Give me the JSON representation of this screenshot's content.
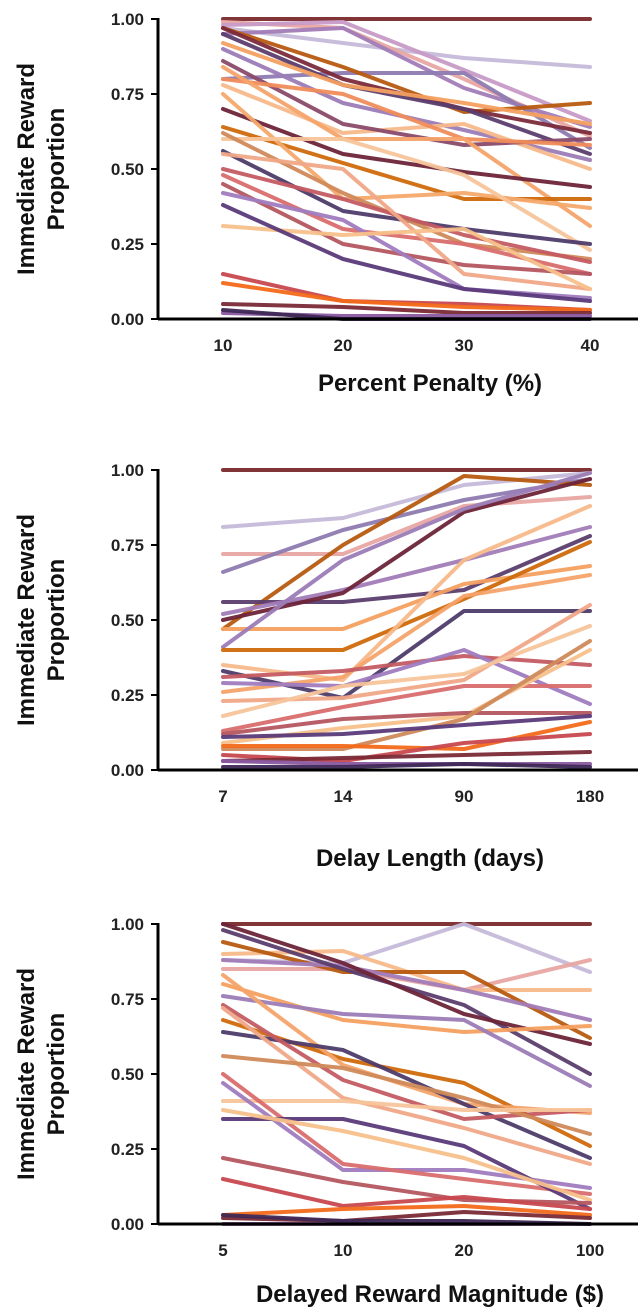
{
  "chart_data": [
    {
      "type": "line",
      "xlabel": "Percent Penalty (%)",
      "ylabel": [
        "Immediate Reward",
        "Proportion"
      ],
      "categories": [
        "10",
        "20",
        "30",
        "40"
      ],
      "ylim": [
        0,
        1
      ],
      "yticks": [
        "0.00",
        "0.25",
        "0.50",
        "0.75",
        "1.00"
      ],
      "series": [
        {
          "color": "#7b2a2c",
          "values": [
            1.0,
            1.0,
            1.0,
            1.0
          ]
        },
        {
          "color": "#c5bbd9",
          "values": [
            0.97,
            0.92,
            0.87,
            0.84
          ]
        },
        {
          "color": "#e8a7a2",
          "values": [
            0.99,
            0.97,
            0.8,
            0.61
          ]
        },
        {
          "color": "#c79ac6",
          "values": [
            0.98,
            0.99,
            0.83,
            0.66
          ]
        },
        {
          "color": "#a27cb8",
          "values": [
            0.95,
            0.97,
            0.77,
            0.64
          ]
        },
        {
          "color": "#8e7bb1",
          "values": [
            0.8,
            0.82,
            0.82,
            0.57
          ]
        },
        {
          "color": "#b75a10",
          "values": [
            0.97,
            0.84,
            0.69,
            0.72
          ]
        },
        {
          "color": "#7b2a3a",
          "values": [
            0.97,
            0.8,
            0.7,
            0.62
          ]
        },
        {
          "color": "#5b3d6d",
          "values": [
            0.95,
            0.78,
            0.7,
            0.55
          ]
        },
        {
          "color": "#f4a060",
          "values": [
            0.92,
            0.78,
            0.72,
            0.65
          ]
        },
        {
          "color": "#9c7cb7",
          "values": [
            0.9,
            0.72,
            0.63,
            0.53
          ]
        },
        {
          "color": "#f7b98a",
          "values": [
            0.78,
            0.62,
            0.65,
            0.5
          ]
        },
        {
          "color": "#8a4a6a",
          "values": [
            0.86,
            0.65,
            0.58,
            0.6
          ]
        },
        {
          "color": "#f08c5a",
          "values": [
            0.8,
            0.75,
            0.6,
            0.58
          ]
        },
        {
          "color": "#f5a36a",
          "values": [
            0.84,
            0.6,
            0.6,
            0.31
          ]
        },
        {
          "color": "#6d2438",
          "values": [
            0.7,
            0.55,
            0.49,
            0.44
          ]
        },
        {
          "color": "#cf6a0c",
          "values": [
            0.64,
            0.52,
            0.4,
            0.4
          ]
        },
        {
          "color": "#f4a96c",
          "values": [
            0.75,
            0.4,
            0.42,
            0.37
          ]
        },
        {
          "color": "#f7c49a",
          "values": [
            0.6,
            0.6,
            0.48,
            0.23
          ]
        },
        {
          "color": "#4e3b6a",
          "values": [
            0.56,
            0.36,
            0.3,
            0.25
          ]
        },
        {
          "color": "#d08a5a",
          "values": [
            0.62,
            0.42,
            0.25,
            0.2
          ]
        },
        {
          "color": "#c45b62",
          "values": [
            0.5,
            0.4,
            0.28,
            0.19
          ]
        },
        {
          "color": "#d96d6d",
          "values": [
            0.48,
            0.3,
            0.25,
            0.15
          ]
        },
        {
          "color": "#b45660",
          "values": [
            0.45,
            0.25,
            0.18,
            0.15
          ]
        },
        {
          "color": "#f0a888",
          "values": [
            0.55,
            0.5,
            0.15,
            0.1
          ]
        },
        {
          "color": "#a07cc0",
          "values": [
            0.42,
            0.33,
            0.1,
            0.07
          ]
        },
        {
          "color": "#f7c08a",
          "values": [
            0.31,
            0.28,
            0.3,
            0.1
          ]
        },
        {
          "color": "#5a3a7a",
          "values": [
            0.38,
            0.2,
            0.1,
            0.06
          ]
        },
        {
          "color": "#c8484f",
          "values": [
            0.15,
            0.06,
            0.05,
            0.03
          ]
        },
        {
          "color": "#f26a1a",
          "values": [
            0.12,
            0.06,
            0.04,
            0.03
          ]
        },
        {
          "color": "#7a2a36",
          "values": [
            0.05,
            0.04,
            0.02,
            0.02
          ]
        },
        {
          "color": "#8a5aa0",
          "values": [
            0.02,
            0.01,
            0.01,
            0.01
          ]
        },
        {
          "color": "#3e2855",
          "values": [
            0.03,
            0.0,
            0.0,
            0.0
          ]
        }
      ]
    },
    {
      "type": "line",
      "xlabel": "Delay Length (days)",
      "ylabel": [
        "Immediate Reward",
        "Proportion"
      ],
      "categories": [
        "7",
        "14",
        "90",
        "180"
      ],
      "ylim": [
        0,
        1
      ],
      "yticks": [
        "0.00",
        "0.25",
        "0.50",
        "0.75",
        "1.00"
      ],
      "series": [
        {
          "color": "#7b2a2c",
          "values": [
            1.0,
            1.0,
            1.0,
            1.0
          ]
        },
        {
          "color": "#c5bbd9",
          "values": [
            0.81,
            0.84,
            0.95,
            0.99
          ]
        },
        {
          "color": "#e8a7a2",
          "values": [
            0.72,
            0.72,
            0.88,
            0.91
          ]
        },
        {
          "color": "#8e7bb1",
          "values": [
            0.66,
            0.8,
            0.9,
            0.97
          ]
        },
        {
          "color": "#b75a10",
          "values": [
            0.47,
            0.75,
            0.98,
            0.95
          ]
        },
        {
          "color": "#5b3d6d",
          "values": [
            0.56,
            0.56,
            0.6,
            0.78
          ]
        },
        {
          "color": "#f4a060",
          "values": [
            0.47,
            0.47,
            0.62,
            0.68
          ]
        },
        {
          "color": "#a27cb8",
          "values": [
            0.52,
            0.6,
            0.7,
            0.81
          ]
        },
        {
          "color": "#6d2438",
          "values": [
            0.5,
            0.59,
            0.86,
            0.97
          ]
        },
        {
          "color": "#9c7cb7",
          "values": [
            0.41,
            0.7,
            0.87,
            0.99
          ]
        },
        {
          "color": "#cf6a0c",
          "values": [
            0.4,
            0.4,
            0.57,
            0.76
          ]
        },
        {
          "color": "#f7b98a",
          "values": [
            0.35,
            0.3,
            0.7,
            0.88
          ]
        },
        {
          "color": "#4e3b6a",
          "values": [
            0.33,
            0.24,
            0.53,
            0.53
          ]
        },
        {
          "color": "#f5a36a",
          "values": [
            0.26,
            0.31,
            0.58,
            0.65
          ]
        },
        {
          "color": "#c45b62",
          "values": [
            0.31,
            0.33,
            0.38,
            0.35
          ]
        },
        {
          "color": "#f0a888",
          "values": [
            0.23,
            0.24,
            0.3,
            0.55
          ]
        },
        {
          "color": "#a07cc0",
          "values": [
            0.29,
            0.28,
            0.4,
            0.22
          ]
        },
        {
          "color": "#f7c49a",
          "values": [
            0.18,
            0.28,
            0.32,
            0.48
          ]
        },
        {
          "color": "#d96d6d",
          "values": [
            0.13,
            0.21,
            0.28,
            0.28
          ]
        },
        {
          "color": "#f7c08a",
          "values": [
            0.09,
            0.14,
            0.18,
            0.4
          ]
        },
        {
          "color": "#b45660",
          "values": [
            0.12,
            0.17,
            0.19,
            0.19
          ]
        },
        {
          "color": "#d08a5a",
          "values": [
            0.07,
            0.07,
            0.17,
            0.43
          ]
        },
        {
          "color": "#5a3a7a",
          "values": [
            0.11,
            0.12,
            0.15,
            0.18
          ]
        },
        {
          "color": "#f26a1a",
          "values": [
            0.08,
            0.08,
            0.07,
            0.16
          ]
        },
        {
          "color": "#c8484f",
          "values": [
            0.05,
            0.03,
            0.09,
            0.12
          ]
        },
        {
          "color": "#7a2a36",
          "values": [
            0.03,
            0.04,
            0.05,
            0.06
          ]
        },
        {
          "color": "#8a5aa0",
          "values": [
            0.03,
            0.02,
            0.02,
            0.02
          ]
        },
        {
          "color": "#3e2855",
          "values": [
            0.01,
            0.01,
            0.02,
            0.01
          ]
        }
      ]
    },
    {
      "type": "line",
      "xlabel": "Delayed Reward Magnitude ($)",
      "ylabel": [
        "Immediate Reward",
        "Proportion"
      ],
      "categories": [
        "5",
        "10",
        "20",
        "100"
      ],
      "ylim": [
        0,
        1
      ],
      "yticks": [
        "0.00",
        "0.25",
        "0.50",
        "0.75",
        "1.00"
      ],
      "series": [
        {
          "color": "#7b2a2c",
          "values": [
            1.0,
            1.0,
            1.0,
            1.0
          ]
        },
        {
          "color": "#c5bbd9",
          "values": [
            0.88,
            0.87,
            1.0,
            0.84
          ]
        },
        {
          "color": "#e8a7a2",
          "values": [
            0.85,
            0.85,
            0.78,
            0.88
          ]
        },
        {
          "color": "#f7b98a",
          "values": [
            0.9,
            0.91,
            0.78,
            0.78
          ]
        },
        {
          "color": "#b75a10",
          "values": [
            0.94,
            0.84,
            0.84,
            0.62
          ]
        },
        {
          "color": "#a27cb8",
          "values": [
            0.88,
            0.86,
            0.78,
            0.68
          ]
        },
        {
          "color": "#5b3d6d",
          "values": [
            0.98,
            0.85,
            0.73,
            0.5
          ]
        },
        {
          "color": "#6d2438",
          "values": [
            1.0,
            0.87,
            0.7,
            0.6
          ]
        },
        {
          "color": "#f4a060",
          "values": [
            0.8,
            0.68,
            0.64,
            0.66
          ]
        },
        {
          "color": "#9c7cb7",
          "values": [
            0.76,
            0.7,
            0.68,
            0.46
          ]
        },
        {
          "color": "#cf6a0c",
          "values": [
            0.68,
            0.55,
            0.47,
            0.26
          ]
        },
        {
          "color": "#f5a36a",
          "values": [
            0.83,
            0.53,
            0.4,
            0.37
          ]
        },
        {
          "color": "#4e3b6a",
          "values": [
            0.64,
            0.58,
            0.4,
            0.22
          ]
        },
        {
          "color": "#c45b62",
          "values": [
            0.73,
            0.48,
            0.35,
            0.38
          ]
        },
        {
          "color": "#f0a888",
          "values": [
            0.72,
            0.42,
            0.32,
            0.2
          ]
        },
        {
          "color": "#d08a5a",
          "values": [
            0.56,
            0.52,
            0.42,
            0.3
          ]
        },
        {
          "color": "#f7c49a",
          "values": [
            0.41,
            0.41,
            0.38,
            0.38
          ]
        },
        {
          "color": "#a07cc0",
          "values": [
            0.47,
            0.18,
            0.18,
            0.12
          ]
        },
        {
          "color": "#d96d6d",
          "values": [
            0.5,
            0.2,
            0.15,
            0.1
          ]
        },
        {
          "color": "#5a3a7a",
          "values": [
            0.35,
            0.35,
            0.26,
            0.05
          ]
        },
        {
          "color": "#f7c08a",
          "values": [
            0.38,
            0.31,
            0.22,
            0.08
          ]
        },
        {
          "color": "#b45660",
          "values": [
            0.22,
            0.14,
            0.08,
            0.07
          ]
        },
        {
          "color": "#c8484f",
          "values": [
            0.15,
            0.06,
            0.09,
            0.05
          ]
        },
        {
          "color": "#f26a1a",
          "values": [
            0.03,
            0.05,
            0.06,
            0.03
          ]
        },
        {
          "color": "#7a2a36",
          "values": [
            0.02,
            0.01,
            0.04,
            0.02
          ]
        },
        {
          "color": "#8a5aa0",
          "values": [
            0.0,
            0.0,
            0.0,
            0.0
          ]
        },
        {
          "color": "#3e2855",
          "values": [
            0.03,
            0.01,
            0.01,
            0.0
          ]
        }
      ]
    }
  ]
}
